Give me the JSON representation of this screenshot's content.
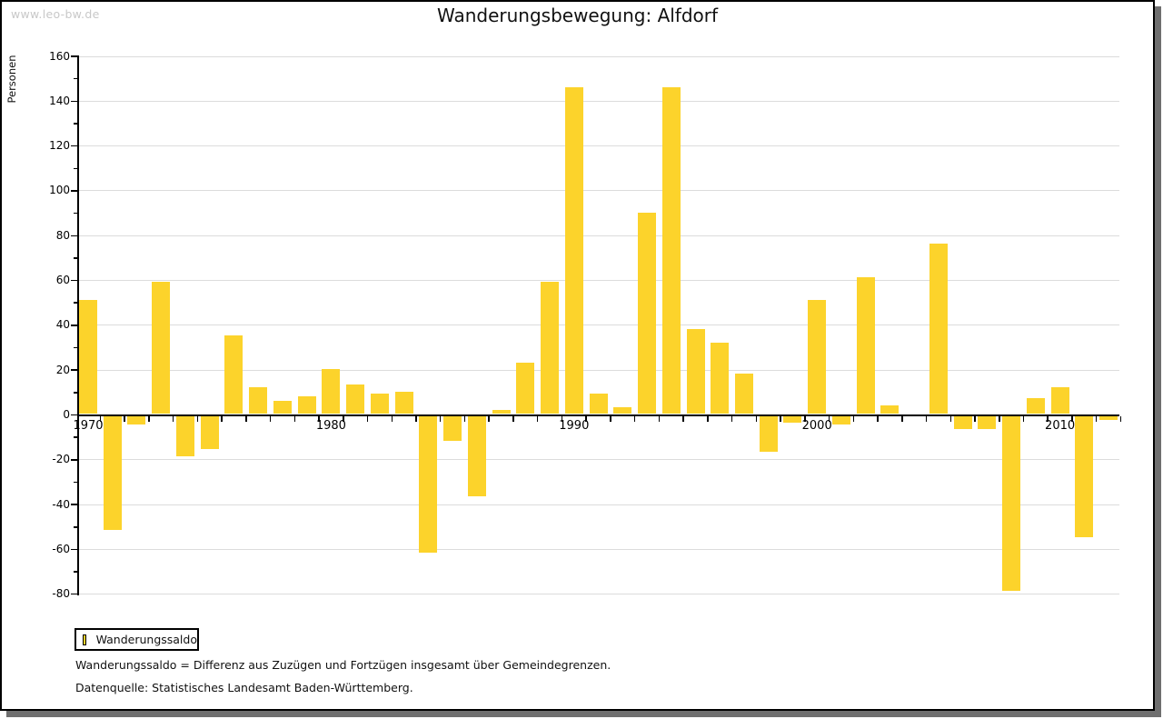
{
  "watermark": "www.leo-bw.de",
  "title": "Wanderungsbewegung: Alfdorf",
  "legend": {
    "label": "Wanderungssaldo",
    "swatch_color": "#fcd32b"
  },
  "footnote1": "Wanderungssaldo = Differenz aus Zuzügen und Fortzügen insgesamt über Gemeindegrenzen.",
  "footnote2": "Datenquelle: Statistisches Landesamt Baden-Württemberg.",
  "chart_data": {
    "type": "bar",
    "title": "Wanderungsbewegung: Alfdorf",
    "ylabel": "Personen",
    "series_name": "Wanderungssaldo",
    "bar_color": "#fcd32b",
    "grid": true,
    "legend_position": "bottom-left",
    "ylim": [
      -80,
      160
    ],
    "ytick_step": 20,
    "xtick_labels": [
      1970,
      1980,
      1990,
      2000,
      2010
    ],
    "x": [
      1970,
      1971,
      1972,
      1973,
      1974,
      1975,
      1976,
      1977,
      1978,
      1979,
      1980,
      1981,
      1982,
      1983,
      1984,
      1985,
      1986,
      1987,
      1988,
      1989,
      1990,
      1991,
      1992,
      1993,
      1994,
      1995,
      1996,
      1997,
      1998,
      1999,
      2000,
      2001,
      2002,
      2003,
      2004,
      2005,
      2006,
      2007,
      2008,
      2009,
      2010,
      2011,
      2012
    ],
    "values": [
      51,
      -51,
      -4,
      59,
      -18,
      -15,
      35,
      12,
      6,
      8,
      20,
      13,
      9,
      10,
      -61,
      -11,
      -36,
      2,
      23,
      59,
      146,
      9,
      3,
      90,
      146,
      38,
      32,
      18,
      -16,
      -3,
      51,
      -4,
      61,
      4,
      0,
      76,
      -6,
      -6,
      -78,
      7,
      12,
      -54,
      -2
    ]
  }
}
